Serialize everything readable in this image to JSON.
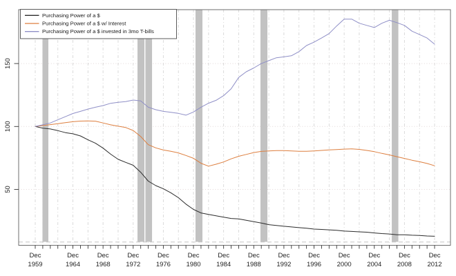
{
  "chart_data": {
    "type": "line",
    "title": "",
    "xlabel": "",
    "ylabel": "",
    "x_axis": {
      "month_label": "Dec",
      "labeled_ticks": [
        "1959",
        "1964",
        "1968",
        "1972",
        "1976",
        "1980",
        "1984",
        "1988",
        "1992",
        "1996",
        "2000",
        "2004",
        "2008",
        "2012"
      ],
      "minor_tick_years": {
        "start": 1959,
        "end": 2012,
        "step": 1
      },
      "xlim_years": [
        1957.7,
        2015.0
      ]
    },
    "y_axis": {
      "ticks": [
        "50",
        "100",
        "150"
      ],
      "tick_values": [
        50,
        100,
        150
      ],
      "ylim": [
        5.5,
        193
      ]
    },
    "x_years": [
      1959,
      1960,
      1961,
      1962,
      1963,
      1964,
      1965,
      1966,
      1967,
      1968,
      1969,
      1970,
      1971,
      1972,
      1973,
      1974,
      1975,
      1976,
      1977,
      1978,
      1979,
      1980,
      1981,
      1982,
      1983,
      1984,
      1985,
      1986,
      1987,
      1988,
      1989,
      1990,
      1991,
      1992,
      1993,
      1994,
      1995,
      1996,
      1997,
      1998,
      1999,
      2000,
      2001,
      2002,
      2003,
      2004,
      2005,
      2006,
      2007,
      2008,
      2009,
      2010,
      2011,
      2012
    ],
    "series": [
      {
        "name": "Purchasing Power of a $",
        "color": "#2b2b2b",
        "values": [
          100,
          98.7,
          98.0,
          96.7,
          95.1,
          94.2,
          92.5,
          89.4,
          86.7,
          82.8,
          78.0,
          73.9,
          71.5,
          69.2,
          63.6,
          56.6,
          53.0,
          50.5,
          47.3,
          43.4,
          38.3,
          34.1,
          31.3,
          30.1,
          29.0,
          27.9,
          26.9,
          26.6,
          25.5,
          24.4,
          23.3,
          22.0,
          21.3,
          20.7,
          20.2,
          19.6,
          19.2,
          18.5,
          18.2,
          17.9,
          17.5,
          16.9,
          16.6,
          16.3,
          16.0,
          15.4,
          14.9,
          14.6,
          14.0,
          14.0,
          13.6,
          13.4,
          13.0,
          12.8
        ]
      },
      {
        "name": "Purchasing Power of a $ w/ Interest",
        "color": "#dd7e3e",
        "values": [
          100,
          100.7,
          101.5,
          102.2,
          103.0,
          103.8,
          104.3,
          104.4,
          104.2,
          102.8,
          101.3,
          100.2,
          99.2,
          96.8,
          92.0,
          85.5,
          83.0,
          81.3,
          80.3,
          79.0,
          77.0,
          74.7,
          70.8,
          68.5,
          70.0,
          71.8,
          74.3,
          76.3,
          77.8,
          79.3,
          80.2,
          80.6,
          80.8,
          80.8,
          80.6,
          80.3,
          80.3,
          80.6,
          81.0,
          81.4,
          81.7,
          82.0,
          82.2,
          81.8,
          81.0,
          80.0,
          78.6,
          77.4,
          76.0,
          74.6,
          73.2,
          72.0,
          70.6,
          68.8
        ]
      },
      {
        "name": "Purchasing Power of a $ invested in 3mo T-bills",
        "color": "#8f8fc7",
        "values": [
          100,
          101.3,
          102.8,
          105.3,
          107.8,
          110.3,
          112.0,
          113.8,
          115.3,
          116.6,
          118.4,
          119.2,
          119.8,
          121.0,
          120.3,
          115.3,
          113.3,
          112.0,
          111.3,
          110.4,
          109.0,
          111.5,
          115.3,
          118.5,
          120.8,
          124.5,
          130.0,
          139.0,
          143.5,
          146.5,
          150.0,
          152.3,
          154.6,
          155.3,
          156.2,
          159.5,
          164.3,
          167.0,
          170.3,
          173.8,
          179.8,
          185.3,
          185.3,
          182.0,
          180.3,
          178.6,
          182.0,
          184.4,
          182.5,
          180.3,
          175.7,
          173.0,
          170.3,
          165.4
        ]
      }
    ],
    "legend": {
      "position": "top-left",
      "entries": [
        "Purchasing Power of a $",
        "Purchasing Power of a $ w/ Interest",
        "Purchasing Power of a $ invested in 3mo T-bills"
      ]
    },
    "recession_bands_years": [
      [
        1960.88,
        1961.66
      ],
      [
        1973.49,
        1974.41
      ],
      [
        1974.54,
        1975.42
      ],
      [
        1981.19,
        1982.11
      ],
      [
        1989.81,
        1990.73
      ],
      [
        2007.24,
        2008.11
      ]
    ],
    "grid": {
      "vertical_every_years": 2,
      "horizontal_at": [
        50,
        100,
        150
      ],
      "bottom_dashed_value": 8.2,
      "band_color": "#c2c2c2"
    }
  },
  "colors": {
    "background": "#ffffff",
    "box_border": "#6e6e6e",
    "tick": "#333333",
    "tick_text": "#222222",
    "grid_vertical": "#d6d6d6",
    "grid_horizontal": "#e2d7d7",
    "bottom_dashed": "#c6c6c6",
    "legend_border": "#4a4a4a"
  }
}
